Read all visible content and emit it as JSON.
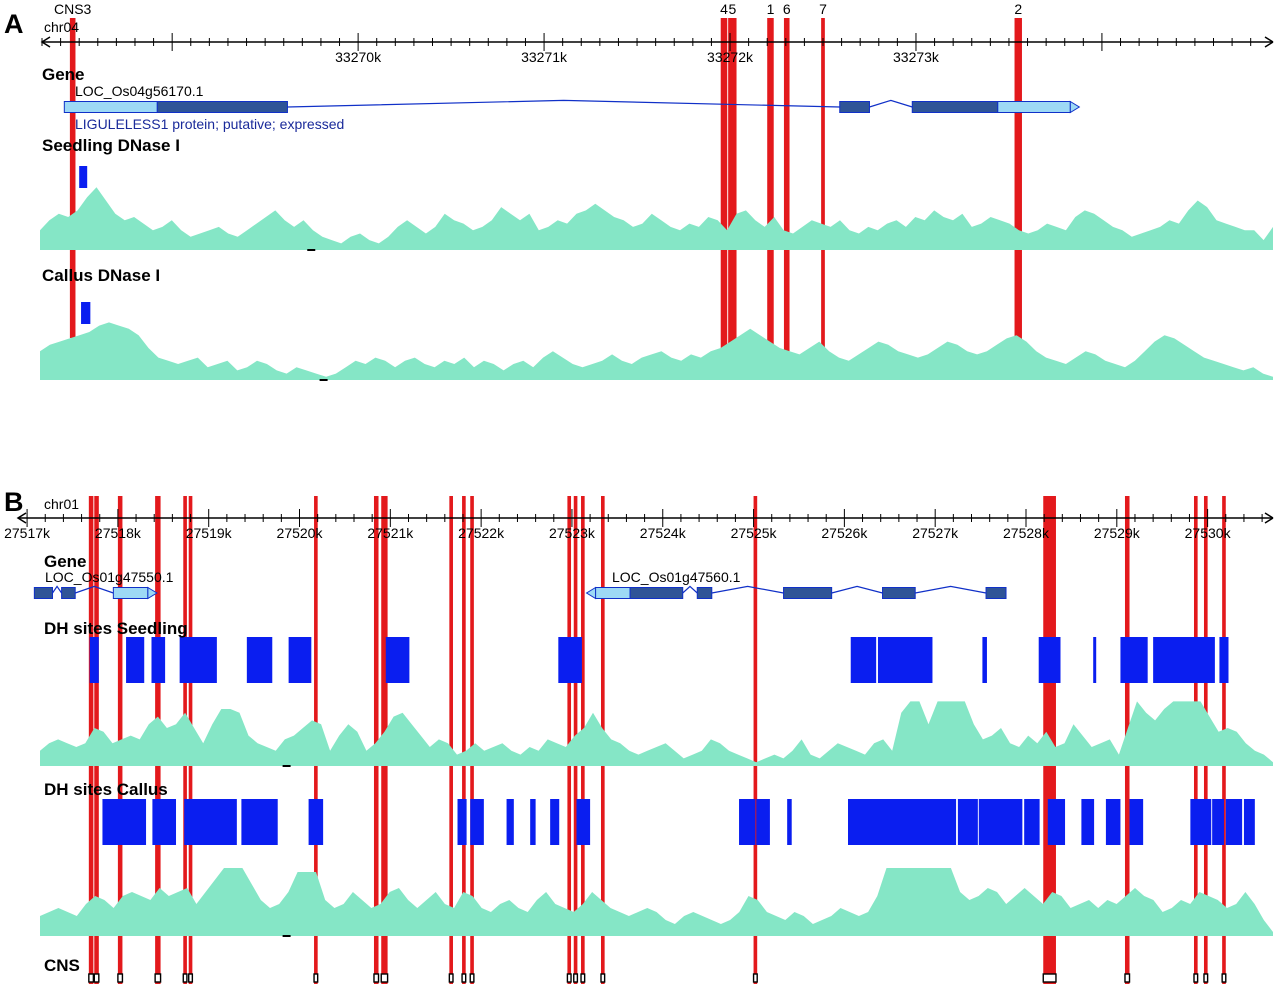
{
  "panels": {
    "a": {
      "letter": "A",
      "chrom": "chr04",
      "range_bp": [
        33268300,
        33274920
      ],
      "ticks": {
        "major_every": 1000,
        "minor_every": 100,
        "labels": [
          "33270k",
          "33271k",
          "33272k",
          "33273k"
        ],
        "label_values": [
          33270000,
          33271000,
          33272000,
          33273000
        ]
      },
      "cns_markers": [
        {
          "label": "CNS3",
          "start": 33268450,
          "end": 33268480
        },
        {
          "label": "4",
          "start": 33271950,
          "end": 33271985
        },
        {
          "label": "5",
          "start": 33271990,
          "end": 33272035
        },
        {
          "label": "1",
          "start": 33272200,
          "end": 33272235
        },
        {
          "label": "6",
          "start": 33272290,
          "end": 33272320
        },
        {
          "label": "7",
          "start": 33272490,
          "end": 33272510
        },
        {
          "label": "2",
          "start": 33273530,
          "end": 33273570
        }
      ],
      "gene_track_title": "Gene",
      "gene": {
        "id": "LOC_Os04g56170.1",
        "description": "LIGULELESS1 protein; putative; expressed",
        "strand": "+",
        "start": 33268420,
        "end": 33273830,
        "utr": [
          [
            33268420,
            33268920
          ],
          [
            33273440,
            33273830
          ]
        ],
        "cds": [
          [
            33268920,
            33269620
          ],
          [
            33272590,
            33272750
          ],
          [
            33272980,
            33273440
          ]
        ]
      },
      "tracks": [
        {
          "title": "Seedling DNase I",
          "dh_sites": [
            [
              33268500,
              33268530
            ]
          ],
          "signal": [
            0.3,
            0.45,
            0.55,
            0.5,
            0.6,
            0.8,
            0.95,
            0.75,
            0.55,
            0.45,
            0.5,
            0.4,
            0.3,
            0.35,
            0.45,
            0.3,
            0.2,
            0.25,
            0.3,
            0.35,
            0.25,
            0.2,
            0.3,
            0.4,
            0.5,
            0.6,
            0.45,
            0.35,
            0.45,
            0.3,
            0.2,
            0.15,
            0.1,
            0.2,
            0.25,
            0.15,
            0.1,
            0.2,
            0.35,
            0.45,
            0.35,
            0.25,
            0.35,
            0.55,
            0.45,
            0.4,
            0.3,
            0.35,
            0.45,
            0.65,
            0.55,
            0.45,
            0.55,
            0.3,
            0.35,
            0.45,
            0.4,
            0.55,
            0.6,
            0.7,
            0.6,
            0.5,
            0.45,
            0.35,
            0.4,
            0.55,
            0.45,
            0.35,
            0.3,
            0.4,
            0.35,
            0.5,
            0.45,
            0.3,
            0.55,
            0.6,
            0.45,
            0.35,
            0.5,
            0.3,
            0.25,
            0.35,
            0.45,
            0.4,
            0.35,
            0.45,
            0.3,
            0.25,
            0.35,
            0.3,
            0.4,
            0.45,
            0.35,
            0.5,
            0.45,
            0.6,
            0.5,
            0.45,
            0.55,
            0.35,
            0.4,
            0.5,
            0.45,
            0.4,
            0.3,
            0.25,
            0.3,
            0.4,
            0.35,
            0.3,
            0.5,
            0.6,
            0.55,
            0.45,
            0.35,
            0.3,
            0.2,
            0.25,
            0.3,
            0.35,
            0.45,
            0.4,
            0.6,
            0.75,
            0.65,
            0.45,
            0.4,
            0.35,
            0.3,
            0.3,
            0.15,
            0.35
          ],
          "signal_min_mark": 0.22
        },
        {
          "title": "Callus DNase I",
          "dh_sites": [
            [
              33268510,
              33268560
            ]
          ],
          "signal": [
            0.45,
            0.55,
            0.6,
            0.65,
            0.7,
            0.75,
            0.85,
            0.9,
            0.85,
            0.8,
            0.7,
            0.5,
            0.35,
            0.3,
            0.25,
            0.3,
            0.35,
            0.2,
            0.25,
            0.3,
            0.15,
            0.2,
            0.3,
            0.25,
            0.15,
            0.1,
            0.2,
            0.15,
            0.1,
            0.05,
            0.1,
            0.2,
            0.3,
            0.25,
            0.35,
            0.3,
            0.2,
            0.3,
            0.35,
            0.25,
            0.2,
            0.3,
            0.25,
            0.35,
            0.2,
            0.3,
            0.25,
            0.15,
            0.25,
            0.3,
            0.2,
            0.35,
            0.45,
            0.35,
            0.25,
            0.2,
            0.25,
            0.3,
            0.4,
            0.3,
            0.25,
            0.35,
            0.4,
            0.45,
            0.35,
            0.3,
            0.4,
            0.35,
            0.45,
            0.5,
            0.6,
            0.7,
            0.8,
            0.7,
            0.6,
            0.5,
            0.45,
            0.4,
            0.5,
            0.6,
            0.45,
            0.35,
            0.3,
            0.4,
            0.5,
            0.6,
            0.55,
            0.45,
            0.4,
            0.35,
            0.4,
            0.5,
            0.6,
            0.55,
            0.45,
            0.4,
            0.45,
            0.55,
            0.65,
            0.7,
            0.6,
            0.45,
            0.35,
            0.3,
            0.25,
            0.35,
            0.45,
            0.4,
            0.3,
            0.25,
            0.2,
            0.3,
            0.45,
            0.6,
            0.7,
            0.65,
            0.55,
            0.45,
            0.35,
            0.3,
            0.25,
            0.2,
            0.15,
            0.2,
            0.1,
            0.05
          ],
          "signal_min_mark": 0.23
        }
      ]
    },
    "b": {
      "letter": "B",
      "chrom": "chr01",
      "range_bp": [
        27516900,
        27530720
      ],
      "ticks": {
        "major_every": 1000,
        "minor_every": 200,
        "labels": [
          "27517k",
          "27518k",
          "27519k",
          "27520k",
          "27521k",
          "27522k",
          "27523k",
          "27524k",
          "27525k",
          "27526k",
          "27527k",
          "27528k",
          "27529k",
          "27530k"
        ],
        "label_values": [
          27517000,
          27518000,
          27519000,
          27520000,
          27521000,
          27522000,
          27523000,
          27524000,
          27525000,
          27526000,
          27527000,
          27528000,
          27529000,
          27530000
        ]
      },
      "cns_positions": [
        [
          27517680,
          27517730
        ],
        [
          27517740,
          27517790
        ],
        [
          27518000,
          27518050
        ],
        [
          27518410,
          27518470
        ],
        [
          27518720,
          27518760
        ],
        [
          27518780,
          27518820
        ],
        [
          27520160,
          27520200
        ],
        [
          27520820,
          27520870
        ],
        [
          27520900,
          27520970
        ],
        [
          27521650,
          27521690
        ],
        [
          27521790,
          27521830
        ],
        [
          27521880,
          27521920
        ],
        [
          27522950,
          27522990
        ],
        [
          27523020,
          27523060
        ],
        [
          27523100,
          27523140
        ],
        [
          27523320,
          27523360
        ],
        [
          27525000,
          27525040
        ],
        [
          27528190,
          27528330
        ],
        [
          27529090,
          27529140
        ],
        [
          27529850,
          27529890
        ],
        [
          27529960,
          27530000
        ],
        [
          27530160,
          27530200
        ]
      ],
      "gene_track_title": "Gene",
      "genes": [
        {
          "id": "LOC_Os01g47550.1",
          "strand": "+",
          "start": 27517080,
          "end": 27518330,
          "utr": [
            [
              27517950,
              27518330
            ]
          ],
          "cds": [
            [
              27517080,
              27517280
            ],
            [
              27517380,
              27517530
            ]
          ]
        },
        {
          "id": "LOC_Os01g47560.1",
          "strand": "-",
          "start": 27523260,
          "end": 27527780,
          "utr": [
            [
              27523260,
              27523640
            ]
          ],
          "cds": [
            [
              27523640,
              27524220
            ],
            [
              27524380,
              27524540
            ],
            [
              27525330,
              27525860
            ],
            [
              27526420,
              27526780
            ],
            [
              27527560,
              27527780
            ]
          ]
        }
      ],
      "tracks": [
        {
          "title": "DH sites Seedling",
          "dh_sites": [
            [
              27517690,
              27517790
            ],
            [
              27518090,
              27518290
            ],
            [
              27518370,
              27518520
            ],
            [
              27518680,
              27519090
            ],
            [
              27519420,
              27519700
            ],
            [
              27519880,
              27520130
            ],
            [
              27520950,
              27521210
            ],
            [
              27522850,
              27523110
            ],
            [
              27526070,
              27526350
            ],
            [
              27526370,
              27526970
            ],
            [
              27527520,
              27527570
            ],
            [
              27528140,
              27528380
            ],
            [
              27528740,
              27528770
            ],
            [
              27529040,
              27529340
            ],
            [
              27529400,
              27530080
            ],
            [
              27530130,
              27530230
            ]
          ],
          "signal": [
            0.2,
            0.3,
            0.35,
            0.3,
            0.25,
            0.3,
            0.5,
            0.45,
            0.3,
            0.35,
            0.4,
            0.35,
            0.55,
            0.65,
            0.5,
            0.55,
            0.7,
            0.5,
            0.3,
            0.55,
            0.75,
            0.75,
            0.7,
            0.4,
            0.3,
            0.25,
            0.2,
            0.35,
            0.4,
            0.5,
            0.6,
            0.55,
            0.2,
            0.4,
            0.55,
            0.45,
            0.2,
            0.3,
            0.45,
            0.65,
            0.7,
            0.55,
            0.4,
            0.25,
            0.35,
            0.3,
            0.15,
            0.2,
            0.3,
            0.2,
            0.25,
            0.3,
            0.2,
            0.15,
            0.25,
            0.2,
            0.35,
            0.3,
            0.25,
            0.4,
            0.5,
            0.7,
            0.5,
            0.35,
            0.3,
            0.2,
            0.15,
            0.2,
            0.25,
            0.3,
            0.2,
            0.1,
            0.15,
            0.2,
            0.35,
            0.3,
            0.2,
            0.15,
            0.1,
            0.05,
            0.1,
            0.15,
            0.1,
            0.2,
            0.35,
            0.15,
            0.1,
            0.2,
            0.3,
            0.25,
            0.2,
            0.15,
            0.3,
            0.35,
            0.2,
            0.7,
            0.85,
            0.85,
            0.55,
            0.85,
            0.85,
            0.85,
            0.85,
            0.55,
            0.35,
            0.4,
            0.5,
            0.3,
            0.25,
            0.4,
            0.3,
            0.45,
            0.25,
            0.3,
            0.55,
            0.4,
            0.25,
            0.3,
            0.35,
            0.15,
            0.5,
            0.85,
            0.7,
            0.6,
            0.75,
            0.85,
            0.85,
            0.85,
            0.85,
            0.65,
            0.45,
            0.5,
            0.45,
            0.3,
            0.2,
            0.15,
            0.05
          ],
          "signal_min_mark": 0.2
        },
        {
          "title": "DH sites  Callus",
          "dh_sites": [
            [
              27517830,
              27518310
            ],
            [
              27518380,
              27518640
            ],
            [
              27518730,
              27519310
            ],
            [
              27519360,
              27519760
            ],
            [
              27520100,
              27520260
            ],
            [
              27521740,
              27521840
            ],
            [
              27521880,
              27522030
            ],
            [
              27522280,
              27522360
            ],
            [
              27522540,
              27522600
            ],
            [
              27522760,
              27522860
            ],
            [
              27523050,
              27523200
            ],
            [
              27524840,
              27525020
            ],
            [
              27525030,
              27525180
            ],
            [
              27525370,
              27525420
            ],
            [
              27526040,
              27527230
            ],
            [
              27527250,
              27527470
            ],
            [
              27527480,
              27527960
            ],
            [
              27527980,
              27528150
            ],
            [
              27528240,
              27528430
            ],
            [
              27528610,
              27528750
            ],
            [
              27528880,
              27529040
            ],
            [
              27529140,
              27529290
            ],
            [
              27529810,
              27530040
            ],
            [
              27530050,
              27530180
            ],
            [
              27530200,
              27530380
            ],
            [
              27530400,
              27530520
            ]
          ],
          "signal": [
            0.25,
            0.3,
            0.35,
            0.3,
            0.25,
            0.4,
            0.5,
            0.45,
            0.35,
            0.5,
            0.55,
            0.5,
            0.45,
            0.6,
            0.5,
            0.55,
            0.6,
            0.4,
            0.55,
            0.7,
            0.85,
            0.85,
            0.85,
            0.65,
            0.45,
            0.35,
            0.4,
            0.55,
            0.8,
            0.8,
            0.8,
            0.45,
            0.35,
            0.4,
            0.55,
            0.45,
            0.35,
            0.4,
            0.55,
            0.6,
            0.45,
            0.35,
            0.45,
            0.55,
            0.4,
            0.35,
            0.55,
            0.5,
            0.35,
            0.3,
            0.4,
            0.45,
            0.35,
            0.3,
            0.45,
            0.55,
            0.4,
            0.35,
            0.3,
            0.4,
            0.55,
            0.45,
            0.35,
            0.3,
            0.25,
            0.3,
            0.35,
            0.3,
            0.2,
            0.15,
            0.25,
            0.3,
            0.25,
            0.2,
            0.15,
            0.2,
            0.3,
            0.5,
            0.45,
            0.3,
            0.25,
            0.2,
            0.3,
            0.25,
            0.15,
            0.2,
            0.25,
            0.35,
            0.3,
            0.25,
            0.3,
            0.5,
            0.85,
            0.85,
            0.85,
            0.85,
            0.85,
            0.85,
            0.85,
            0.85,
            0.55,
            0.45,
            0.5,
            0.6,
            0.55,
            0.4,
            0.5,
            0.6,
            0.5,
            0.4,
            0.55,
            0.5,
            0.35,
            0.4,
            0.45,
            0.35,
            0.45,
            0.4,
            0.5,
            0.6,
            0.5,
            0.45,
            0.3,
            0.35,
            0.45,
            0.4,
            0.55,
            0.5,
            0.45,
            0.35,
            0.4,
            0.55,
            0.4,
            0.2,
            0.05
          ],
          "signal_min_mark": 0.2
        }
      ],
      "cns_track_title": "CNS"
    }
  },
  "colors": {
    "cns_highlight": "#e3191c",
    "dh_site": "#0a1ef0",
    "signal_fill": "#85e6c6",
    "cds": "#2f5497",
    "utr": "#9dd9f5",
    "gene_outline": "#1030c8",
    "gene_desc_text": "#1a2a9a"
  }
}
